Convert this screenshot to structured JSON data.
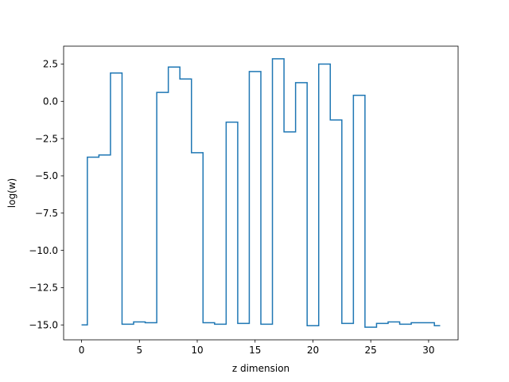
{
  "chart_data": {
    "type": "line",
    "drawstyle": "steps-mid",
    "title": "",
    "xlabel": "z dimension",
    "ylabel": "log(w)",
    "xlim": [
      -1.55,
      32.55
    ],
    "ylim": [
      -16.0,
      3.7
    ],
    "x_ticks": [
      0,
      5,
      10,
      15,
      20,
      25,
      30
    ],
    "x_tick_labels": [
      "0",
      "5",
      "10",
      "15",
      "20",
      "25",
      "30"
    ],
    "y_ticks": [
      2.5,
      0.0,
      -2.5,
      -5.0,
      -7.5,
      -10.0,
      -12.5,
      -15.0
    ],
    "y_tick_labels": [
      "2.5",
      "0.0",
      "−2.5",
      "−5.0",
      "−7.5",
      "−10.0",
      "−12.5",
      "−15.0"
    ],
    "grid": false,
    "series_color": "#1f77b4",
    "x": [
      0,
      1,
      2,
      3,
      4,
      5,
      6,
      7,
      8,
      9,
      10,
      11,
      12,
      13,
      14,
      15,
      16,
      17,
      18,
      19,
      20,
      21,
      22,
      23,
      24,
      25,
      26,
      27,
      28,
      29,
      30,
      31
    ],
    "y": [
      -15.0,
      -3.75,
      -3.6,
      1.9,
      -14.95,
      -14.8,
      -14.85,
      0.6,
      2.3,
      1.5,
      -3.45,
      -14.85,
      -14.95,
      -1.4,
      -14.9,
      2.0,
      -14.95,
      2.85,
      -2.05,
      1.25,
      -15.05,
      2.5,
      -1.25,
      -14.9,
      0.4,
      -15.15,
      -14.9,
      -14.8,
      -14.95,
      -14.85,
      -14.85,
      -15.05
    ]
  }
}
